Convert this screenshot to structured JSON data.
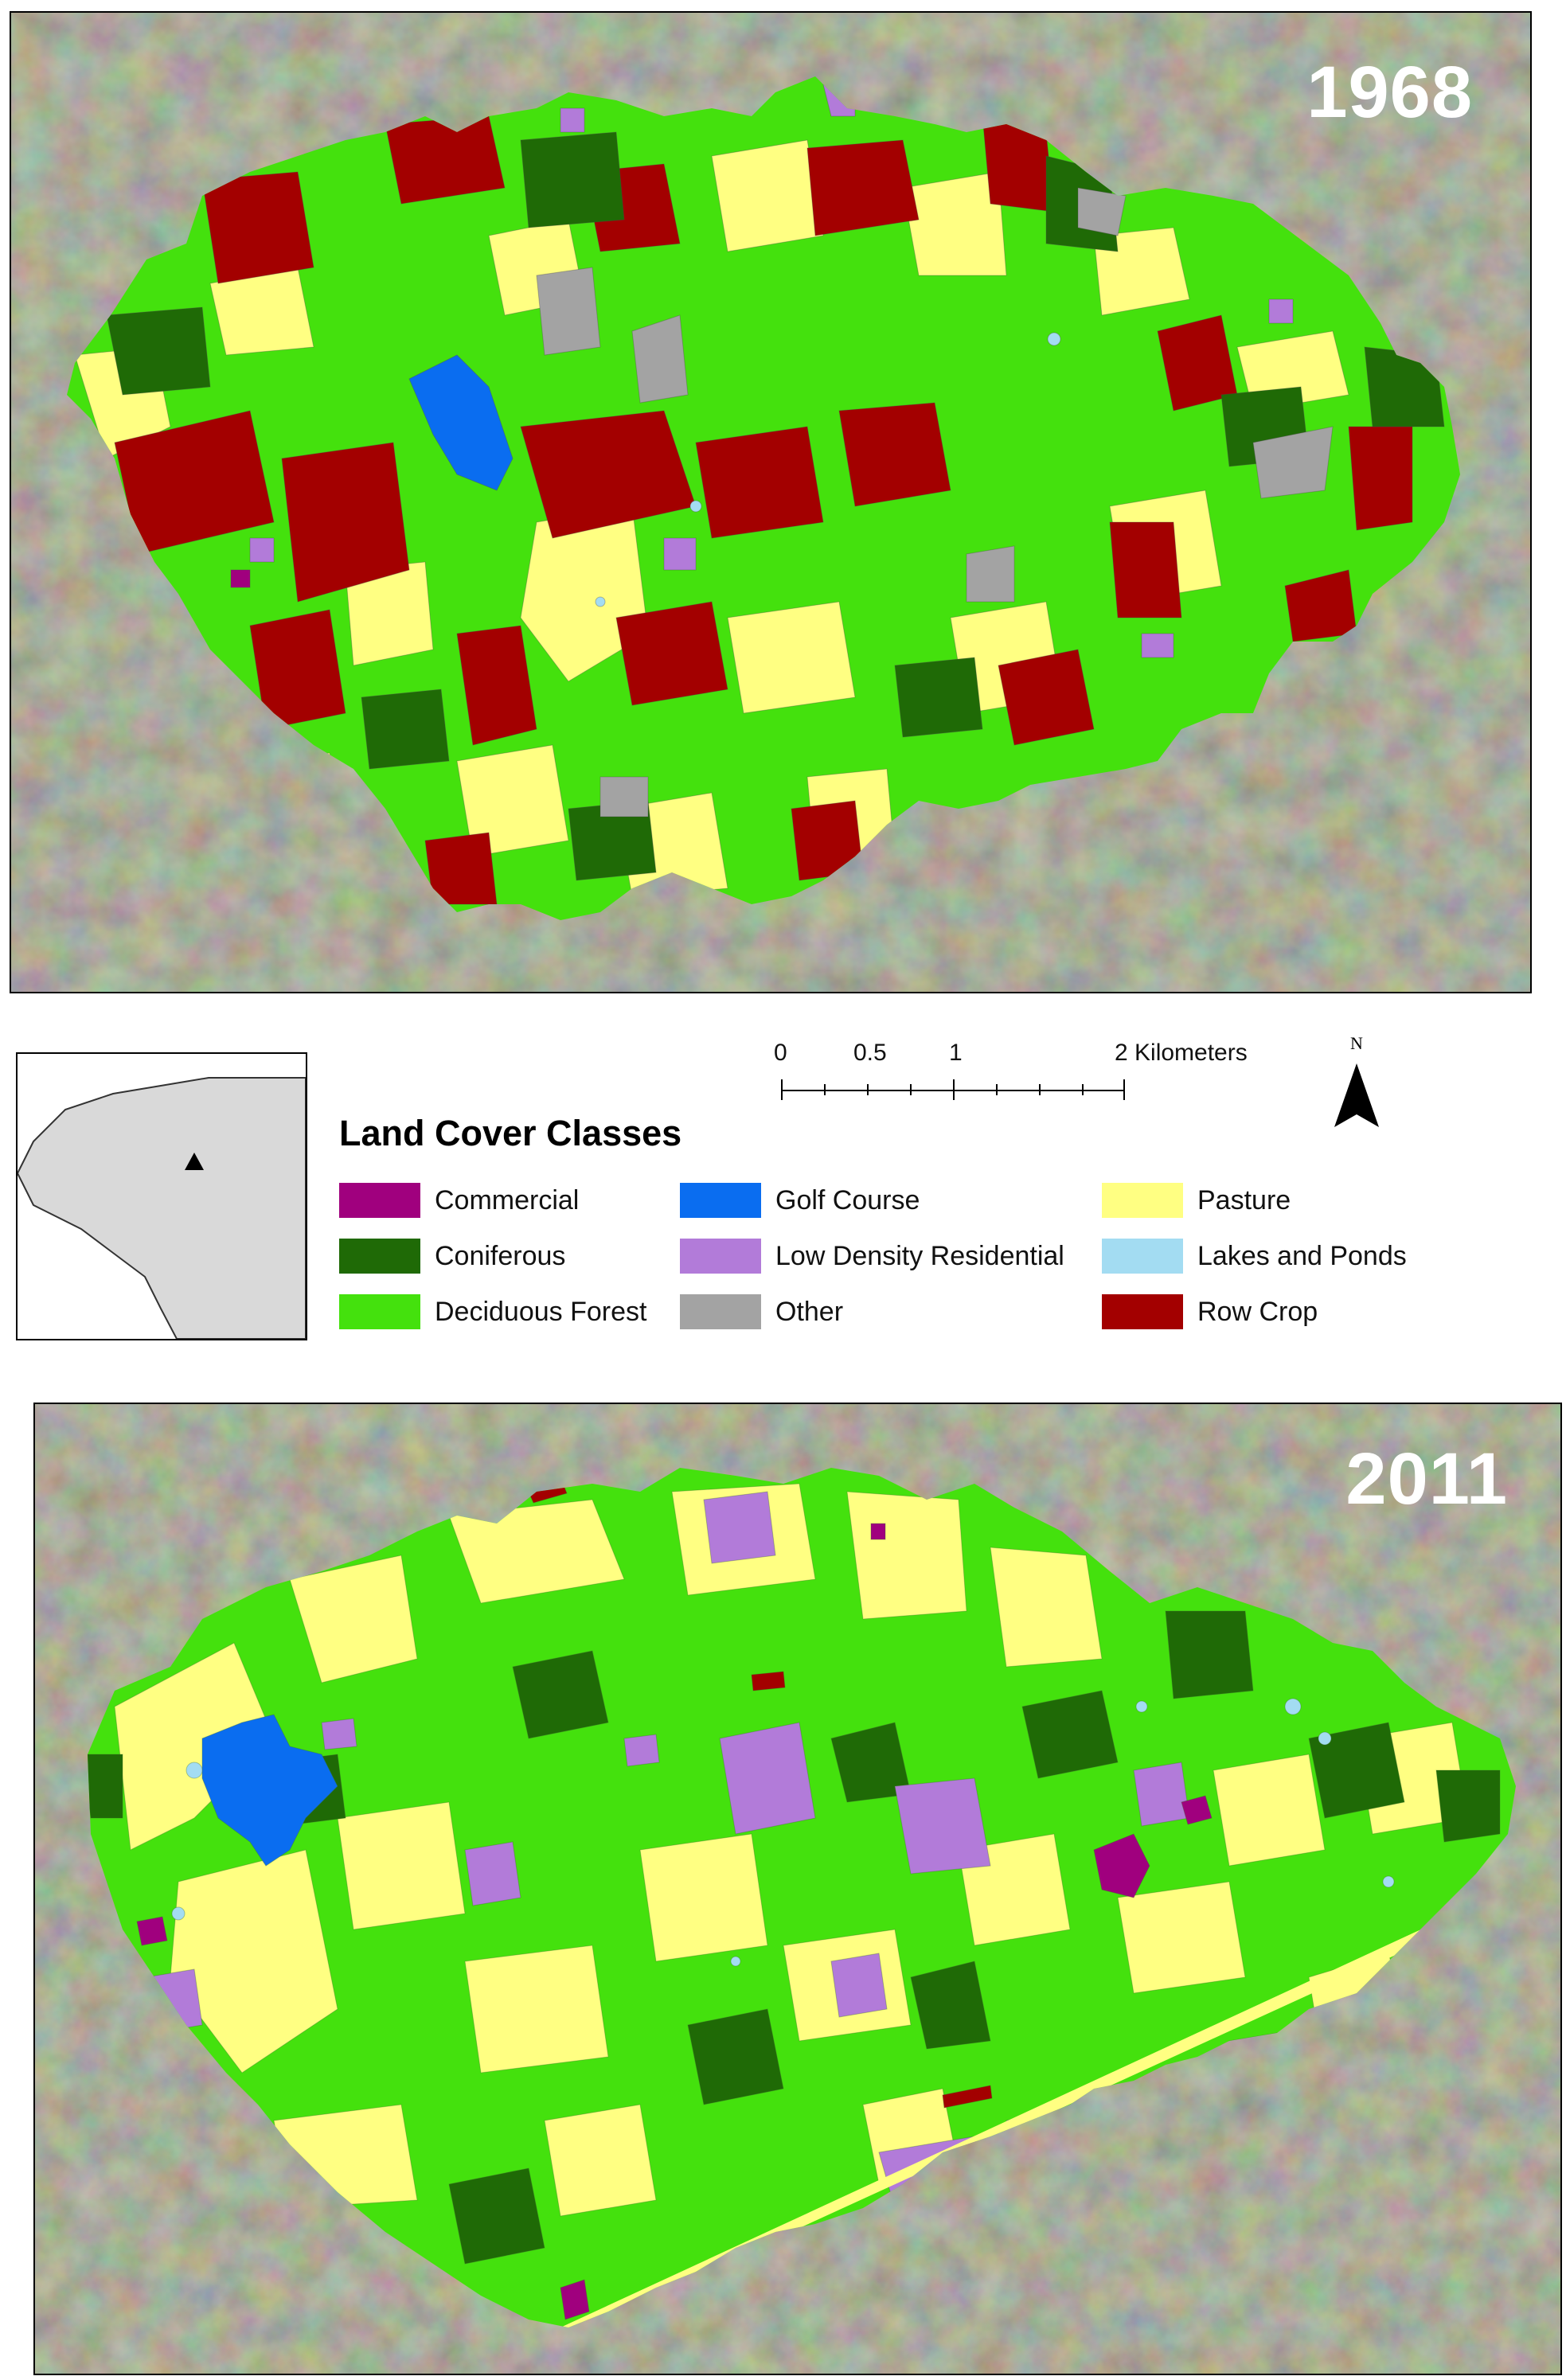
{
  "maps": {
    "top": {
      "year": "1968"
    },
    "bottom": {
      "year": "2011"
    }
  },
  "legend": {
    "title": "Land Cover Classes",
    "items": [
      {
        "label": "Commercial",
        "color": "#a0007e"
      },
      {
        "label": "Coniferous",
        "color": "#1f6a06"
      },
      {
        "label": "Deciduous Forest",
        "color": "#44e10d"
      },
      {
        "label": "Golf Course",
        "color": "#0a6df0"
      },
      {
        "label": "Low Density Residential",
        "color": "#b27bd9"
      },
      {
        "label": "Other",
        "color": "#a3a3a3"
      },
      {
        "label": "Pasture",
        "color": "#ffff82"
      },
      {
        "label": "Lakes and Ponds",
        "color": "#a3dcf2"
      },
      {
        "label": "Row Crop",
        "color": "#a30000"
      }
    ]
  },
  "scalebar": {
    "ticks": [
      "0",
      "0.5",
      "1",
      "2 Kilometers"
    ]
  },
  "north_arrow": {
    "label": "N",
    "icon": "north-arrow-icon"
  }
}
